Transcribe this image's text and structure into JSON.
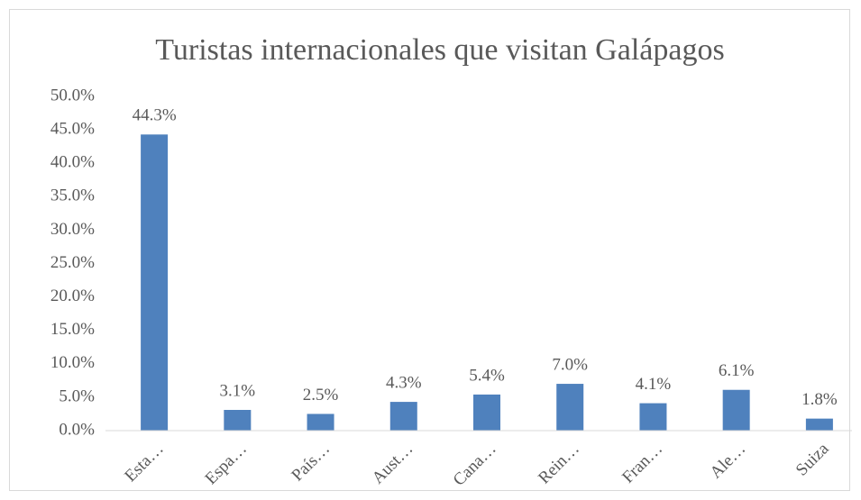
{
  "chart_data": {
    "type": "bar",
    "title": "Turistas internacionales que visitan Galápagos",
    "categories": [
      "Esta…",
      "Espa…",
      "País…",
      "Aust…",
      "Cana…",
      "Rein…",
      "Fran…",
      "Ale…",
      "Suiza"
    ],
    "values": [
      44.3,
      3.1,
      2.5,
      4.3,
      5.4,
      7.0,
      4.1,
      6.1,
      1.8
    ],
    "value_labels": [
      "44.3%",
      "3.1%",
      "2.5%",
      "4.3%",
      "5.4%",
      "7.0%",
      "4.1%",
      "6.1%",
      "1.8%"
    ],
    "color": "#4f81bd",
    "ylim": [
      0,
      50
    ],
    "yticks": [
      {
        "value": 0,
        "label": "0.0%"
      },
      {
        "value": 5,
        "label": "5.0%"
      },
      {
        "value": 10,
        "label": "10.0%"
      },
      {
        "value": 15,
        "label": "15.0%"
      },
      {
        "value": 20,
        "label": "20.0%"
      },
      {
        "value": 25,
        "label": "25.0%"
      },
      {
        "value": 30,
        "label": "30.0%"
      },
      {
        "value": 35,
        "label": "35.0%"
      },
      {
        "value": 40,
        "label": "40.0%"
      },
      {
        "value": 45,
        "label": "45.0%"
      },
      {
        "value": 50,
        "label": "50.0%"
      }
    ],
    "grid": false
  }
}
